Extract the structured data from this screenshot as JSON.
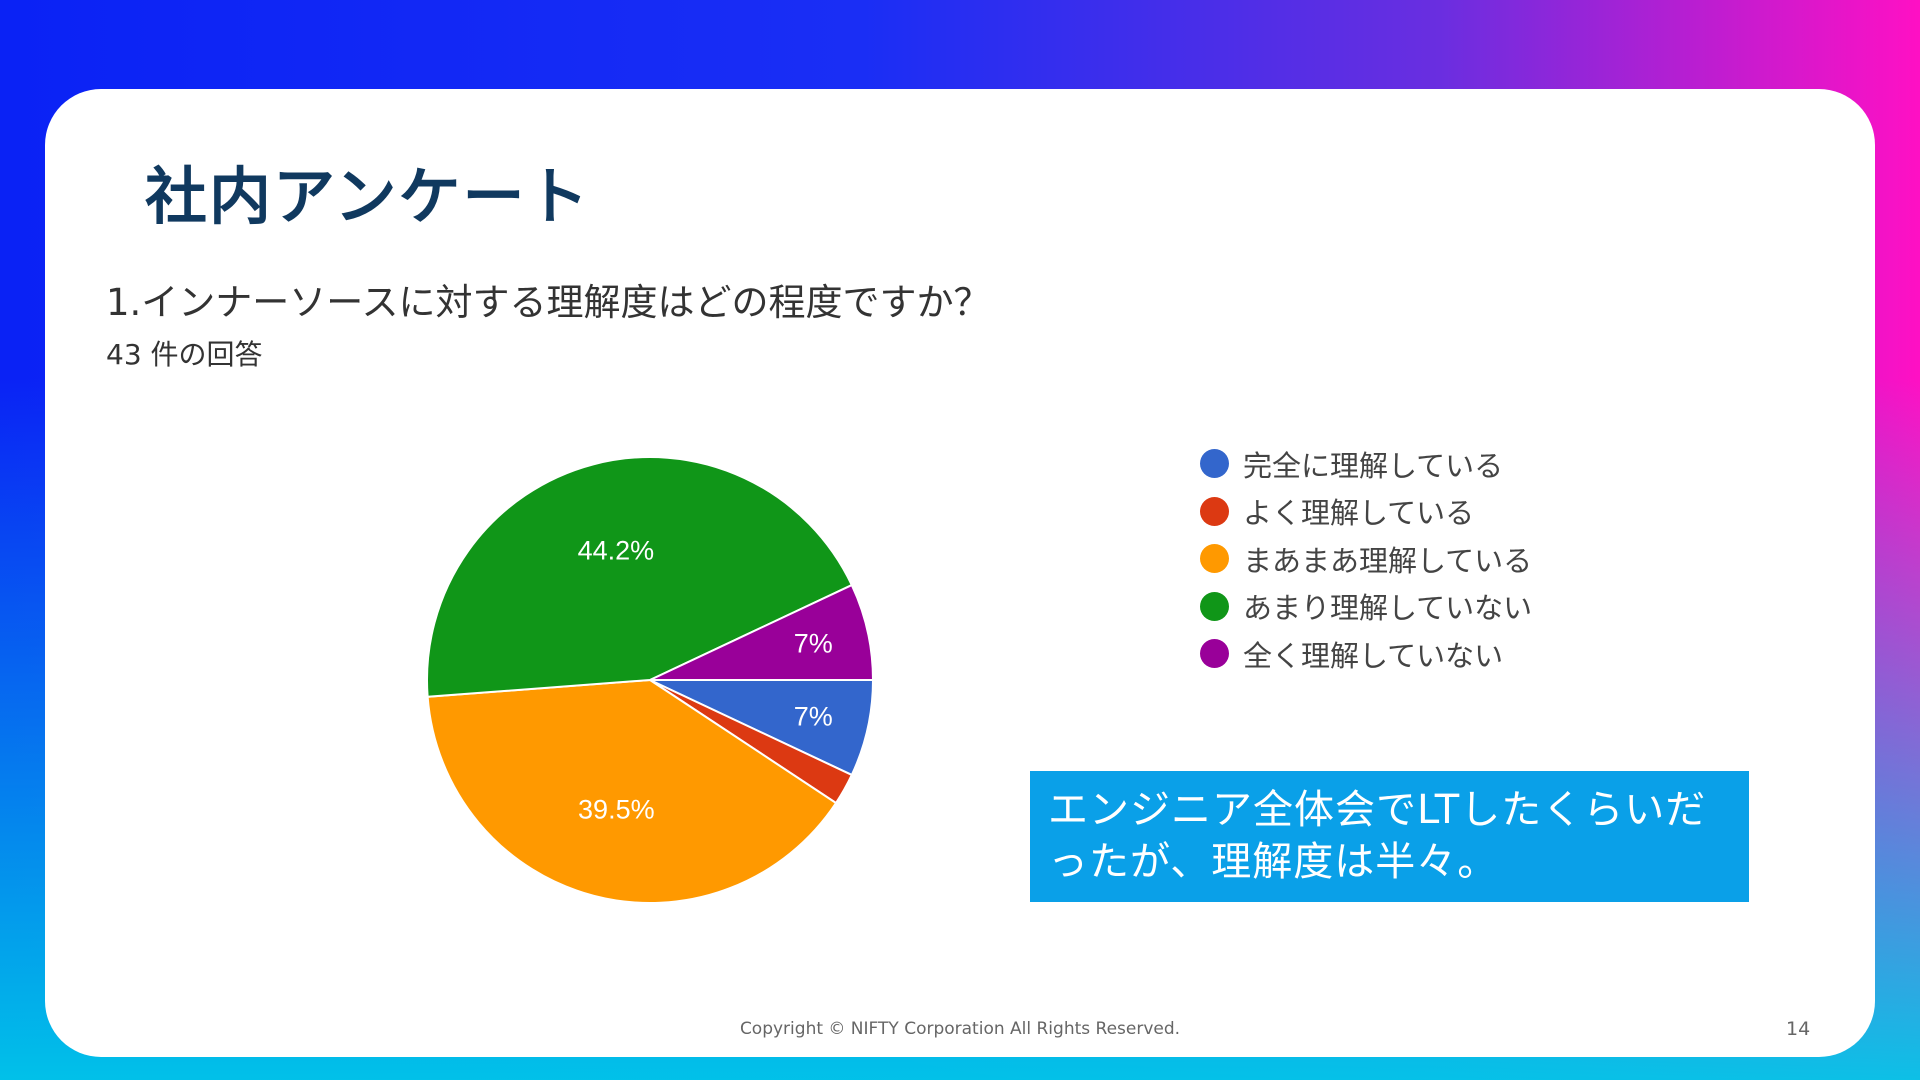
{
  "slide": {
    "title": "社内アンケート",
    "copyright": "Copyright © NIFTY Corporation All Rights Reserved.",
    "page_number": "14"
  },
  "survey": {
    "question": "1.インナーソースに対する理解度はどの程度ですか？",
    "responses": "43 件の回答"
  },
  "callout": {
    "line1": "エンジニア全体会でLTしたくらいだ",
    "line2": "ったが、理解度は半々。"
  },
  "chart_data": {
    "type": "pie",
    "title": "",
    "categories": [
      "完全に理解している",
      "よく理解している",
      "まあまあ理解している",
      "あまり理解していない",
      "全く理解していない"
    ],
    "values": [
      7.0,
      2.3,
      39.5,
      44.2,
      7.0
    ],
    "data_labels": [
      "7%",
      "",
      "39.5%",
      "44.2%",
      "7%"
    ],
    "colors": [
      "#3366cc",
      "#dc3912",
      "#ff9900",
      "#109618",
      "#990099"
    ],
    "legend_position": "right"
  }
}
